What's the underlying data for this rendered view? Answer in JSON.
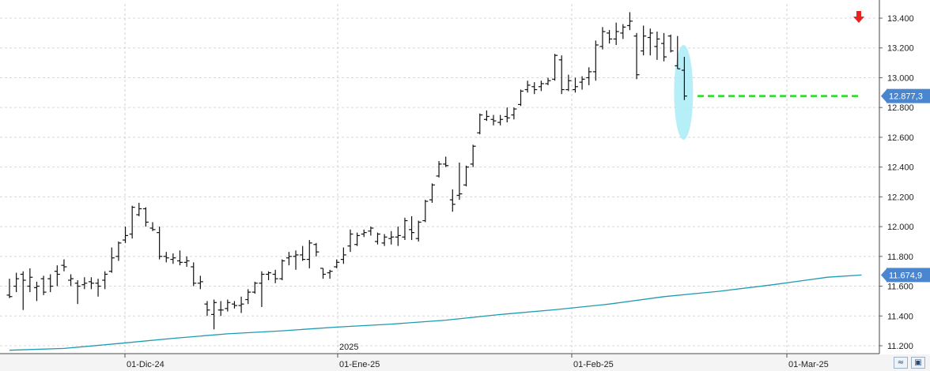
{
  "chart_data": {
    "type": "ohlc",
    "title": "",
    "xlabel": "",
    "ylabel": "",
    "ylim": [
      11200,
      13500
    ],
    "y_ticks": [
      "13.400",
      "13.200",
      "13.000",
      "12.800",
      "12.600",
      "12.400",
      "12.200",
      "12.000",
      "11.800",
      "11.600",
      "11.400",
      "11.200"
    ],
    "x_tick_labels": [
      "01-Dic-24",
      "01-Ene-25",
      "01-Feb-25",
      "01-Mar-25"
    ],
    "year_label": "2025",
    "grid": true,
    "price_badge": "12.877,3",
    "ma_badge": "11.674,9",
    "ohlc": [
      [
        11540,
        11520,
        11650,
        11530
      ],
      [
        11600,
        11560,
        11690,
        11650
      ],
      [
        11680,
        11440,
        11700,
        11640
      ],
      [
        11600,
        11560,
        11720,
        11660
      ],
      [
        11590,
        11500,
        11630,
        11600
      ],
      [
        11650,
        11540,
        11670,
        11560
      ],
      [
        11650,
        11560,
        11680,
        11600
      ],
      [
        11700,
        11600,
        11740,
        11680
      ],
      [
        11740,
        11700,
        11780,
        11730
      ],
      [
        11640,
        11600,
        11680,
        11650
      ],
      [
        11620,
        11480,
        11640,
        11600
      ],
      [
        11610,
        11580,
        11660,
        11620
      ],
      [
        11630,
        11580,
        11660,
        11620
      ],
      [
        11620,
        11530,
        11650,
        11600
      ],
      [
        11640,
        11580,
        11700,
        11680
      ],
      [
        11700,
        11690,
        11860,
        11790
      ],
      [
        11800,
        11770,
        11900,
        11890
      ],
      [
        11910,
        11890,
        12000,
        11940
      ],
      [
        11950,
        11920,
        12140,
        12130
      ],
      [
        12080,
        12070,
        12160,
        12120
      ],
      [
        12120,
        12000,
        12130,
        12030
      ],
      [
        11990,
        11970,
        12030,
        11980
      ],
      [
        11960,
        11780,
        12000,
        11800
      ],
      [
        11800,
        11760,
        11830,
        11790
      ],
      [
        11780,
        11750,
        11820,
        11790
      ],
      [
        11770,
        11740,
        11840,
        11760
      ],
      [
        11760,
        11730,
        11800,
        11770
      ],
      [
        11730,
        11600,
        11760,
        11620
      ],
      [
        11620,
        11580,
        11670,
        11630
      ],
      [
        11480,
        11400,
        11500,
        11440
      ],
      [
        11410,
        11310,
        11510,
        11490
      ],
      [
        11440,
        11400,
        11500,
        11440
      ],
      [
        11450,
        11430,
        11510,
        11490
      ],
      [
        11480,
        11450,
        11500,
        11470
      ],
      [
        11470,
        11420,
        11530,
        11480
      ],
      [
        11510,
        11480,
        11580,
        11560
      ],
      [
        11560,
        11550,
        11630,
        11620
      ],
      [
        11620,
        11460,
        11700,
        11680
      ],
      [
        11680,
        11640,
        11700,
        11690
      ],
      [
        11680,
        11620,
        11710,
        11650
      ],
      [
        11650,
        11640,
        11780,
        11770
      ],
      [
        11790,
        11740,
        11830,
        11800
      ],
      [
        11800,
        11710,
        11840,
        11810
      ],
      [
        11810,
        11770,
        11870,
        11780
      ],
      [
        11780,
        11720,
        11910,
        11890
      ],
      [
        11880,
        11800,
        11890,
        11830
      ],
      [
        11720,
        11650,
        11720,
        11680
      ],
      [
        11690,
        11650,
        11710,
        11700
      ],
      [
        11730,
        11720,
        11780,
        11760
      ],
      [
        11780,
        11750,
        11860,
        11810
      ],
      [
        11870,
        11830,
        11980,
        11950
      ],
      [
        11880,
        11870,
        11960,
        11940
      ],
      [
        11950,
        11930,
        11980,
        11960
      ],
      [
        11970,
        11940,
        12000,
        11990
      ],
      [
        11900,
        11880,
        11960,
        11950
      ],
      [
        11890,
        11870,
        11950,
        11930
      ],
      [
        11920,
        11880,
        11970,
        11930
      ],
      [
        11930,
        11870,
        12000,
        11940
      ],
      [
        11930,
        11910,
        12060,
        12040
      ],
      [
        11980,
        11910,
        12070,
        11960
      ],
      [
        11920,
        11900,
        12040,
        12030
      ],
      [
        12040,
        12030,
        12180,
        12170
      ],
      [
        12180,
        12160,
        12290,
        12280
      ],
      [
        12340,
        12330,
        12440,
        12420
      ],
      [
        12420,
        12400,
        12470,
        12410
      ],
      [
        12180,
        12100,
        12250,
        12150
      ],
      [
        12210,
        12180,
        12430,
        12220
      ],
      [
        12280,
        12270,
        12410,
        12400
      ],
      [
        12420,
        12400,
        12550,
        12540
      ],
      [
        12630,
        12620,
        12760,
        12750
      ],
      [
        12720,
        12710,
        12780,
        12740
      ],
      [
        12720,
        12680,
        12750,
        12710
      ],
      [
        12700,
        12680,
        12750,
        12720
      ],
      [
        12740,
        12700,
        12800,
        12730
      ],
      [
        12750,
        12720,
        12800,
        12790
      ],
      [
        12820,
        12810,
        12920,
        12910
      ],
      [
        12920,
        12900,
        12980,
        12950
      ],
      [
        12940,
        12890,
        12970,
        12920
      ],
      [
        12940,
        12910,
        12980,
        12960
      ],
      [
        12960,
        12950,
        13000,
        12980
      ],
      [
        12990,
        12980,
        13160,
        13150
      ],
      [
        13120,
        12890,
        13150,
        12920
      ],
      [
        12920,
        12910,
        13020,
        12980
      ],
      [
        12920,
        12900,
        13000,
        12940
      ],
      [
        12970,
        12920,
        13010,
        12990
      ],
      [
        13000,
        12950,
        13070,
        13040
      ],
      [
        13040,
        12980,
        13250,
        13220
      ],
      [
        13210,
        13190,
        13340,
        13310
      ],
      [
        13300,
        13230,
        13320,
        13260
      ],
      [
        13260,
        13220,
        13370,
        13310
      ],
      [
        13300,
        13260,
        13360,
        13340
      ],
      [
        13350,
        13320,
        13440,
        13380
      ],
      [
        13280,
        12990,
        13300,
        13020
      ],
      [
        13180,
        13150,
        13350,
        13280
      ],
      [
        13270,
        13150,
        13330,
        13300
      ],
      [
        13210,
        13120,
        13310,
        13260
      ],
      [
        13230,
        13110,
        13300,
        13140
      ],
      [
        13280,
        13170,
        13290,
        13180
      ],
      [
        13080,
        13060,
        13280,
        13060
      ],
      [
        13050,
        12850,
        13140,
        12877
      ]
    ],
    "ma": [
      [
        0,
        11170
      ],
      [
        8,
        11182
      ],
      [
        16,
        11215
      ],
      [
        24,
        11250
      ],
      [
        32,
        11280
      ],
      [
        40,
        11300
      ],
      [
        48,
        11325
      ],
      [
        56,
        11345
      ],
      [
        64,
        11372
      ],
      [
        72,
        11410
      ],
      [
        80,
        11442
      ],
      [
        88,
        11480
      ],
      [
        96,
        11530
      ],
      [
        104,
        11565
      ],
      [
        112,
        11610
      ],
      [
        120,
        11660
      ],
      [
        125,
        11675
      ]
    ],
    "support_level": 12877,
    "support_color": "#22dd22",
    "highlight_color": "#a9ecf7",
    "arrow_color": "#e8221f",
    "ma_color": "#1c9bb0",
    "badge_color": "#4a86d0",
    "bar_color": "#111111"
  },
  "toolbar": {
    "zoom_icon": "zoom-icon",
    "save_icon": "save-icon"
  }
}
